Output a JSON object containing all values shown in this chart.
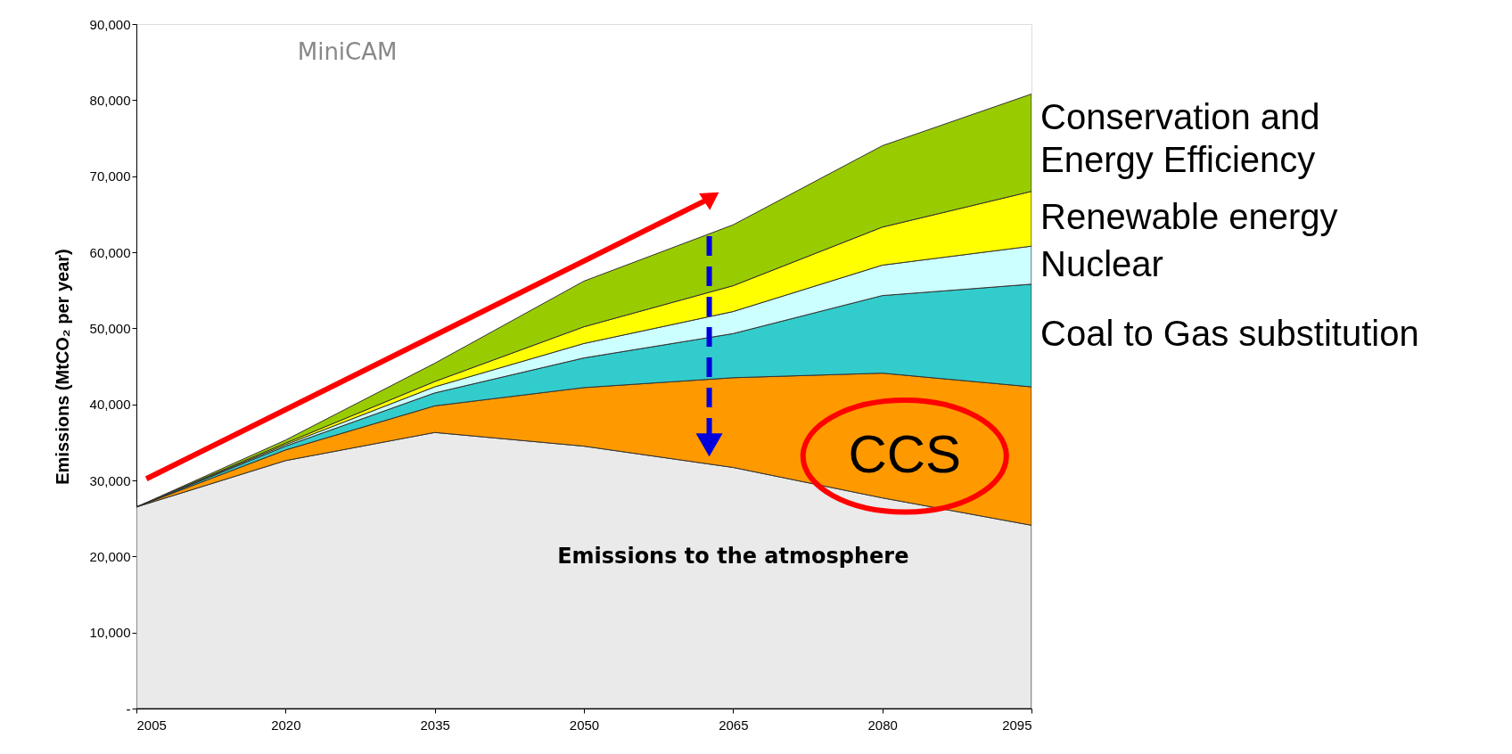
{
  "chart_data": {
    "type": "area",
    "stacked": true,
    "ylabel": "Emissions (MtCO₂ per year)",
    "x": [
      2005,
      2020,
      2035,
      2050,
      2065,
      2080,
      2095
    ],
    "xlim": [
      2005,
      2095
    ],
    "xticks": [
      2005,
      2020,
      2035,
      2050,
      2065,
      2080,
      2095
    ],
    "ylim": [
      0,
      90000
    ],
    "yticks": [
      {
        "value": 0,
        "label": "-"
      },
      {
        "value": 10000,
        "label": "10,000"
      },
      {
        "value": 20000,
        "label": "20,000"
      },
      {
        "value": 30000,
        "label": "30,000"
      },
      {
        "value": 40000,
        "label": "40,000"
      },
      {
        "value": 50000,
        "label": "50,000"
      },
      {
        "value": 60000,
        "label": "60,000"
      },
      {
        "value": 70000,
        "label": "70,000"
      },
      {
        "value": 80000,
        "label": "80,000"
      },
      {
        "value": 90000,
        "label": "90,000"
      }
    ],
    "grid": false,
    "series": [
      {
        "name": "Emissions to the atmosphere",
        "color": "#eaeaea",
        "values": [
          26500,
          32600,
          36300,
          34500,
          31700,
          27700,
          24100
        ]
      },
      {
        "name": "CCS",
        "color": "#ff9900",
        "values": [
          0,
          1400,
          3500,
          7700,
          11800,
          16400,
          18200
        ]
      },
      {
        "name": "Coal to Gas substitution",
        "color": "#33cccc",
        "values": [
          0,
          500,
          1700,
          3900,
          5800,
          10200,
          13500
        ]
      },
      {
        "name": "Nuclear",
        "color": "#ccffff",
        "values": [
          0,
          200,
          800,
          1900,
          2900,
          4000,
          5000
        ]
      },
      {
        "name": "Renewable energy",
        "color": "#ffff00",
        "values": [
          0,
          200,
          700,
          2200,
          3400,
          5000,
          7200
        ]
      },
      {
        "name": "Conservation and Energy Efficiency",
        "color": "#99cc00",
        "values": [
          0,
          400,
          2400,
          6000,
          8000,
          10700,
          12800
        ]
      }
    ],
    "annotations": [
      "MiniCAM"
    ]
  }
}
